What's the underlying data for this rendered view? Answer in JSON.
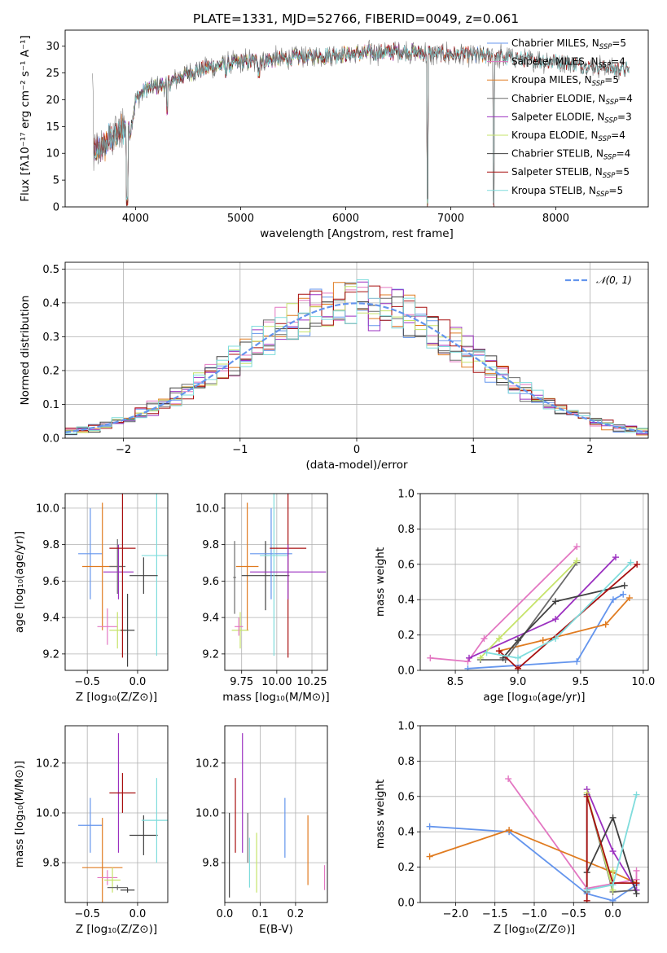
{
  "title": "PLATE=1331, MJD=52766, FIBERID=0049, z=0.061",
  "colors": {
    "Chabrier MILES": "#6495ed",
    "Salpeter MILES": "#e377c2",
    "Kroupa MILES": "#e07b20",
    "Chabrier ELODIE": "#6b6b6b",
    "Salpeter ELODIE": "#9b30c0",
    "Kroupa ELODIE": "#c6e36a",
    "Chabrier STELIB": "#404040",
    "Salpeter STELIB": "#a81010",
    "Kroupa STELIB": "#7fdcdc"
  },
  "legend": [
    {
      "key": "Chabrier MILES",
      "label": "Chabrier MILES, N",
      "n": "=5"
    },
    {
      "key": "Salpeter MILES",
      "label": "Salpeter MILES, N",
      "n": "=4"
    },
    {
      "key": "Kroupa MILES",
      "label": "Kroupa MILES, N",
      "n": "=5"
    },
    {
      "key": "Chabrier ELODIE",
      "label": "Chabrier ELODIE, N",
      "n": "=4"
    },
    {
      "key": "Salpeter ELODIE",
      "label": "Salpeter ELODIE, N",
      "n": "=3"
    },
    {
      "key": "Kroupa ELODIE",
      "label": "Kroupa ELODIE, N",
      "n": "=4"
    },
    {
      "key": "Chabrier STELIB",
      "label": "Chabrier STELIB, N",
      "n": "=4"
    },
    {
      "key": "Salpeter STELIB",
      "label": "Salpeter STELIB, N",
      "n": "=5"
    },
    {
      "key": "Kroupa STELIB",
      "label": "Kroupa STELIB, N",
      "n": "=5"
    }
  ],
  "legend_sub": "SSP",
  "normal_label": "𝒩(0, 1)",
  "chart_data": [
    {
      "id": "spectrum",
      "type": "line",
      "xlabel": "wavelength [Angstrom, rest frame]",
      "ylabel": "Flux [fλ10⁻¹⁷ erg cm⁻² s⁻¹ A⁻¹]",
      "xlim": [
        3330,
        8880
      ],
      "ylim": [
        0,
        33
      ],
      "xticks": [
        4000,
        5000,
        6000,
        7000,
        8000
      ],
      "yticks": [
        0,
        5,
        10,
        15,
        20,
        25,
        30
      ],
      "trend": {
        "x": [
          3600,
          3700,
          3800,
          3900,
          3950,
          4000,
          4100,
          4300,
          4500,
          4700,
          5000,
          5300,
          5600,
          6000,
          6500,
          7000,
          7500,
          8000,
          8500,
          8700
        ],
        "y": [
          10,
          11.5,
          13,
          15,
          14,
          20,
          22,
          23,
          25,
          26,
          27,
          27.5,
          28,
          28.5,
          29,
          28.5,
          28,
          27,
          26,
          25.5
        ]
      },
      "dips": [
        {
          "x": 3934,
          "y": 14
        },
        {
          "x": 4300,
          "y": 17
        },
        {
          "x": 4861,
          "y": 24
        },
        {
          "x": 5175,
          "y": 24
        },
        {
          "x": 6780,
          "y": 0
        },
        {
          "x": 7410,
          "y": 0
        },
        {
          "x": 3920,
          "y": 0
        }
      ]
    },
    {
      "id": "residual-histogram",
      "type": "area",
      "xlabel": "(data-model)/error",
      "ylabel": "Normed distribution",
      "xlim": [
        -2.5,
        2.5
      ],
      "ylim": [
        0,
        0.52
      ],
      "xticks": [
        -2,
        -1,
        0,
        1,
        2
      ],
      "yticks": [
        0,
        0.1,
        0.2,
        0.3,
        0.4,
        0.5
      ],
      "bin_width": 0.1
    },
    {
      "id": "Z-age",
      "type": "scatter",
      "xlabel": "Z [log₁₀(Z/Z⊙)]",
      "ylabel": "age  [log₁₀(age/yr)]",
      "xlim": [
        -0.72,
        0.3
      ],
      "ylim": [
        9.11,
        10.08
      ],
      "xticks": [
        -0.5,
        0.0
      ],
      "yticks": [
        9.2,
        9.4,
        9.6,
        9.8,
        10.0
      ],
      "points": [
        {
          "key": "Chabrier MILES",
          "x": -0.47,
          "y": 9.75,
          "xerr": 0.12,
          "yerr": 0.25
        },
        {
          "key": "Kroupa MILES",
          "x": -0.35,
          "y": 9.68,
          "xerr": 0.2,
          "yerr": 0.35
        },
        {
          "key": "Salpeter MILES",
          "x": -0.3,
          "y": 9.35,
          "xerr": 0.1,
          "yerr": 0.1
        },
        {
          "key": "Chabrier ELODIE",
          "x": -0.2,
          "y": 9.68,
          "xerr": 0.08,
          "yerr": 0.15
        },
        {
          "key": "Salpeter ELODIE",
          "x": -0.19,
          "y": 9.65,
          "xerr": 0.15,
          "yerr": 0.15
        },
        {
          "key": "Kroupa ELODIE",
          "x": -0.2,
          "y": 9.33,
          "xerr": 0.08,
          "yerr": 0.1
        },
        {
          "key": "Chabrier STELIB",
          "x": -0.1,
          "y": 9.33,
          "xerr": 0.07,
          "yerr": 0.2
        },
        {
          "key": "Salpeter STELIB",
          "x": -0.15,
          "y": 9.78,
          "xerr": 0.13,
          "yerr": 0.6
        },
        {
          "key": "Kroupa STELIB",
          "x": 0.19,
          "y": 9.74,
          "xerr": 0.15,
          "yerr": 0.55
        },
        {
          "key": "Chabrier STELIB",
          "x": 0.06,
          "y": 9.63,
          "xerr": 0.14,
          "yerr": 0.1
        }
      ]
    },
    {
      "id": "mass-age",
      "type": "scatter",
      "xlabel": "mass [log₁₀(M/M⊙)]",
      "ylabel": "",
      "xlim": [
        9.63,
        10.36
      ],
      "ylim": [
        9.11,
        10.08
      ],
      "xticks": [
        9.75,
        10.0,
        10.25
      ],
      "yticks": [
        9.2,
        9.4,
        9.6,
        9.8,
        10.0
      ],
      "points": [
        {
          "key": "Chabrier ELODIE",
          "x": 9.7,
          "y": 9.62,
          "xerr": 0.01,
          "yerr": 0.2
        },
        {
          "key": "Kroupa ELODIE",
          "x": 9.74,
          "y": 9.33,
          "xerr": 0.06,
          "yerr": 0.1
        },
        {
          "key": "Kroupa MILES",
          "x": 9.79,
          "y": 9.68,
          "xerr": 0.08,
          "yerr": 0.35
        },
        {
          "key": "Chabrier STELIB",
          "x": 9.92,
          "y": 9.63,
          "xerr": 0.17,
          "yerr": 0.19
        },
        {
          "key": "Salpeter MILES",
          "x": 9.73,
          "y": 9.35,
          "xerr": 0.03,
          "yerr": 0.05
        },
        {
          "key": "Chabrier MILES",
          "x": 9.96,
          "y": 9.75,
          "xerr": 0.15,
          "yerr": 0.25
        },
        {
          "key": "Kroupa STELIB",
          "x": 9.98,
          "y": 9.74,
          "xerr": 0.1,
          "yerr": 0.55
        },
        {
          "key": "Salpeter STELIB",
          "x": 10.08,
          "y": 9.78,
          "xerr": 0.13,
          "yerr": 0.6
        },
        {
          "key": "Salpeter ELODIE",
          "x": 10.08,
          "y": 9.65,
          "xerr": 0.27,
          "yerr": 0.15
        }
      ]
    },
    {
      "id": "age-weight",
      "type": "line",
      "xlabel": "age  [log₁₀(age/yr)]",
      "ylabel": "mass weight",
      "xlim": [
        8.22,
        10.04
      ],
      "ylim": [
        0,
        1.0
      ],
      "xticks": [
        8.5,
        9.0,
        9.5,
        10.0
      ],
      "yticks": [
        0,
        0.2,
        0.4,
        0.6,
        0.8,
        1.0
      ],
      "series": [
        {
          "key": "Chabrier MILES",
          "x": [
            8.6,
            9.47,
            9.76,
            9.84
          ],
          "y": [
            0.01,
            0.05,
            0.4,
            0.43
          ]
        },
        {
          "key": "Salpeter MILES",
          "x": [
            8.3,
            8.6,
            8.73,
            9.47
          ],
          "y": [
            0.07,
            0.05,
            0.18,
            0.7
          ]
        },
        {
          "key": "Kroupa MILES",
          "x": [
            8.85,
            9.2,
            9.7,
            9.89
          ],
          "y": [
            0.11,
            0.17,
            0.26,
            0.41
          ]
        },
        {
          "key": "Chabrier ELODIE",
          "x": [
            8.7,
            8.9,
            9.47
          ],
          "y": [
            0.06,
            0.06,
            0.61
          ]
        },
        {
          "key": "Salpeter ELODIE",
          "x": [
            8.61,
            9.3,
            9.78
          ],
          "y": [
            0.07,
            0.29,
            0.64
          ]
        },
        {
          "key": "Kroupa ELODIE",
          "x": [
            8.7,
            8.85,
            9.47
          ],
          "y": [
            0.07,
            0.18,
            0.62
          ]
        },
        {
          "key": "Chabrier STELIB",
          "x": [
            8.88,
            9.0,
            9.3,
            9.85
          ],
          "y": [
            0.07,
            0.17,
            0.39,
            0.48
          ]
        },
        {
          "key": "Salpeter STELIB",
          "x": [
            8.85,
            9.0,
            9.95
          ],
          "y": [
            0.11,
            0.01,
            0.6
          ]
        },
        {
          "key": "Kroupa STELIB",
          "x": [
            8.75,
            9.0,
            9.3,
            9.9
          ],
          "y": [
            0.1,
            0.07,
            0.18,
            0.61
          ]
        }
      ]
    },
    {
      "id": "Z-mass",
      "type": "scatter",
      "xlabel": "Z [log₁₀(Z/Z⊙)]",
      "ylabel": "mass [log₁₀(M/M⊙)]",
      "xlim": [
        -0.72,
        0.3
      ],
      "ylim": [
        9.64,
        10.35
      ],
      "xticks": [
        -0.5,
        0.0
      ],
      "yticks": [
        9.8,
        10.0,
        10.2
      ],
      "points": [
        {
          "key": "Chabrier MILES",
          "x": -0.47,
          "y": 9.95,
          "xerr": 0.12,
          "yerr": 0.11
        },
        {
          "key": "Kroupa MILES",
          "x": -0.35,
          "y": 9.78,
          "xerr": 0.2,
          "yerr": 0.2
        },
        {
          "key": "Salpeter MILES",
          "x": -0.3,
          "y": 9.74,
          "xerr": 0.1,
          "yerr": 0.03
        },
        {
          "key": "Kroupa ELODIE",
          "x": -0.25,
          "y": 9.73,
          "xerr": 0.08,
          "yerr": 0.05
        },
        {
          "key": "Chabrier ELODIE",
          "x": -0.2,
          "y": 9.7,
          "xerr": 0.1,
          "yerr": 0.01
        },
        {
          "key": "Salpeter ELODIE",
          "x": -0.19,
          "y": 10.08,
          "xerr": 0.01,
          "yerr": 0.24
        },
        {
          "key": "Salpeter STELIB",
          "x": -0.15,
          "y": 10.08,
          "xerr": 0.13,
          "yerr": 0.08
        },
        {
          "key": "Chabrier STELIB",
          "x": -0.1,
          "y": 9.69,
          "xerr": 0.07,
          "yerr": 0.01
        },
        {
          "key": "Chabrier STELIB",
          "x": 0.06,
          "y": 9.91,
          "xerr": 0.14,
          "yerr": 0.08
        },
        {
          "key": "Kroupa STELIB",
          "x": 0.19,
          "y": 9.97,
          "xerr": 0.15,
          "yerr": 0.17
        }
      ]
    },
    {
      "id": "ebv-mass",
      "type": "scatter",
      "xlabel": "E(B-V)",
      "ylabel": "",
      "xlim": [
        0.0,
        0.29
      ],
      "ylim": [
        9.64,
        10.35
      ],
      "xticks": [
        0.0,
        0.1,
        0.2
      ],
      "yticks": [
        9.8,
        10.0,
        10.2
      ],
      "points": [
        {
          "key": "Chabrier STELIB",
          "x": 0.013,
          "y": 9.83,
          "yerr": 0.17
        },
        {
          "key": "Salpeter STELIB",
          "x": 0.03,
          "y": 9.99,
          "yerr": 0.15
        },
        {
          "key": "Salpeter ELODIE",
          "x": 0.05,
          "y": 10.08,
          "yerr": 0.24
        },
        {
          "key": "Chabrier ELODIE",
          "x": 0.065,
          "y": 9.9,
          "yerr": 0.1
        },
        {
          "key": "Kroupa STELIB",
          "x": 0.07,
          "y": 9.8,
          "yerr": 0.1
        },
        {
          "key": "Kroupa ELODIE",
          "x": 0.09,
          "y": 9.8,
          "yerr": 0.12
        },
        {
          "key": "Chabrier MILES",
          "x": 0.17,
          "y": 9.94,
          "yerr": 0.12
        },
        {
          "key": "Kroupa MILES",
          "x": 0.235,
          "y": 9.85,
          "yerr": 0.14
        },
        {
          "key": "Salpeter MILES",
          "x": 0.282,
          "y": 9.74,
          "yerr": 0.05
        }
      ]
    },
    {
      "id": "Z-weight",
      "type": "line",
      "xlabel": "Z [log₁₀(Z/Z⊙)]",
      "ylabel": "mass weight",
      "xlim": [
        -2.45,
        0.45
      ],
      "ylim": [
        0,
        1.0
      ],
      "xticks": [
        -2.0,
        -1.5,
        -1.0,
        -0.5,
        0.0
      ],
      "yticks": [
        0,
        0.2,
        0.4,
        0.6,
        0.8,
        1.0
      ],
      "series": [
        {
          "key": "Chabrier MILES",
          "x": [
            -2.33,
            -1.32,
            -0.33,
            0.0,
            0.3
          ],
          "y": [
            0.43,
            0.4,
            0.05,
            0.01,
            0.1
          ]
        },
        {
          "key": "Salpeter MILES",
          "x": [
            -1.33,
            -0.33,
            0.3,
            0.3
          ],
          "y": [
            0.7,
            0.08,
            0.13,
            0.18
          ]
        },
        {
          "key": "Kroupa MILES",
          "x": [
            -2.33,
            -1.32,
            0.0,
            0.3
          ],
          "y": [
            0.26,
            0.41,
            0.17,
            0.11
          ]
        },
        {
          "key": "Chabrier ELODIE",
          "x": [
            -0.33,
            -0.33,
            0.0,
            0.3
          ],
          "y": [
            0.06,
            0.61,
            0.06,
            0.07
          ]
        },
        {
          "key": "Salpeter ELODIE",
          "x": [
            -0.33,
            0.0,
            0.3
          ],
          "y": [
            0.64,
            0.29,
            0.07
          ]
        },
        {
          "key": "Kroupa ELODIE",
          "x": [
            -0.33,
            0.0,
            0.0
          ],
          "y": [
            0.62,
            0.07,
            0.18
          ]
        },
        {
          "key": "Chabrier STELIB",
          "x": [
            -0.33,
            0.0,
            0.3
          ],
          "y": [
            0.17,
            0.48,
            0.05
          ]
        },
        {
          "key": "Salpeter STELIB",
          "x": [
            -0.33,
            -0.33,
            0.0,
            0.3
          ],
          "y": [
            0.01,
            0.6,
            0.11,
            0.11
          ]
        },
        {
          "key": "Kroupa STELIB",
          "x": [
            -0.33,
            0.0,
            0.3
          ],
          "y": [
            0.07,
            0.1,
            0.61
          ]
        }
      ]
    }
  ]
}
